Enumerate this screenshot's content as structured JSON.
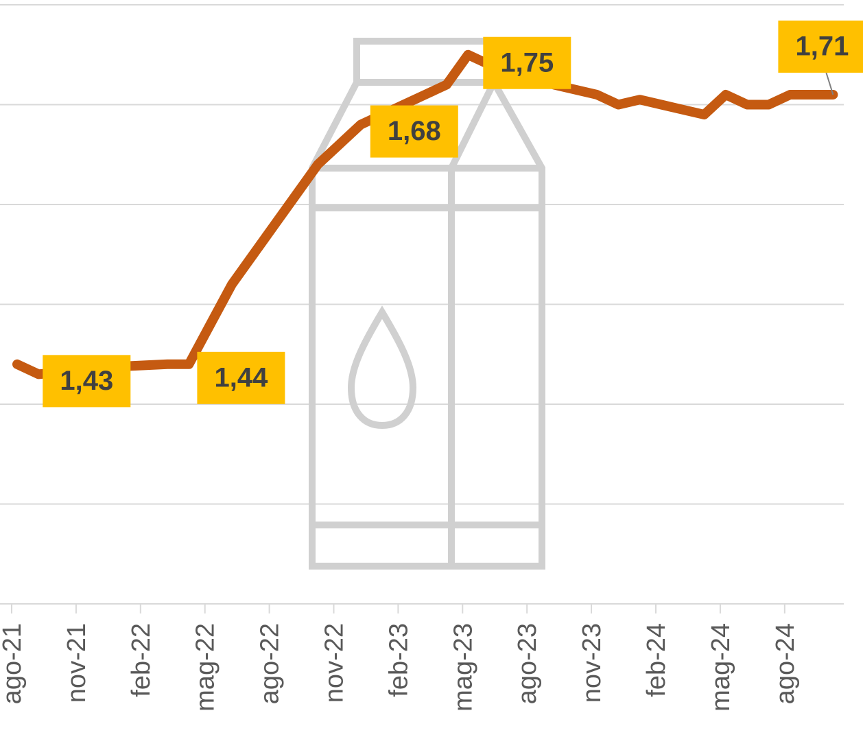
{
  "chart_data": {
    "type": "line",
    "categories": [
      "ago-21",
      null,
      null,
      "nov-21",
      null,
      null,
      "feb-22",
      null,
      null,
      "mag-22",
      null,
      null,
      "ago-22",
      null,
      null,
      "nov-22",
      null,
      null,
      "feb-23",
      null,
      null,
      "mag-23",
      null,
      null,
      "ago-23",
      null,
      null,
      "nov-23",
      null,
      null,
      "feb-24",
      null,
      null,
      "mag-24",
      null,
      null,
      "ago-24",
      null,
      null
    ],
    "series": [
      {
        "color": "#c55a11",
        "values": [
          1.44,
          1.43,
          1.432,
          1.434,
          1.436,
          1.438,
          1.439,
          1.44,
          1.44,
          1.48,
          1.52,
          1.55,
          1.58,
          1.61,
          1.64,
          1.66,
          1.68,
          1.69,
          1.7,
          1.71,
          1.72,
          1.75,
          1.74,
          1.735,
          1.73,
          1.72,
          1.715,
          1.71,
          1.7,
          1.705,
          1.7,
          1.695,
          1.69,
          1.71,
          1.7,
          1.7,
          1.71,
          1.71,
          1.71
        ],
        "value_labels": [
          null,
          "1,43",
          null,
          null,
          null,
          null,
          null,
          null,
          "1,44",
          null,
          null,
          null,
          null,
          null,
          null,
          null,
          "1,68",
          null,
          null,
          null,
          null,
          "1,75",
          null,
          null,
          null,
          null,
          null,
          null,
          null,
          null,
          null,
          null,
          null,
          null,
          null,
          null,
          null,
          null,
          "1,71"
        ]
      }
    ],
    "ylim": [
      1.2,
      1.8
    ],
    "yticks": [
      1.2,
      1.3,
      1.4,
      1.5,
      1.6,
      1.7,
      1.8
    ],
    "grid": true,
    "label_color": "#ffc000"
  }
}
